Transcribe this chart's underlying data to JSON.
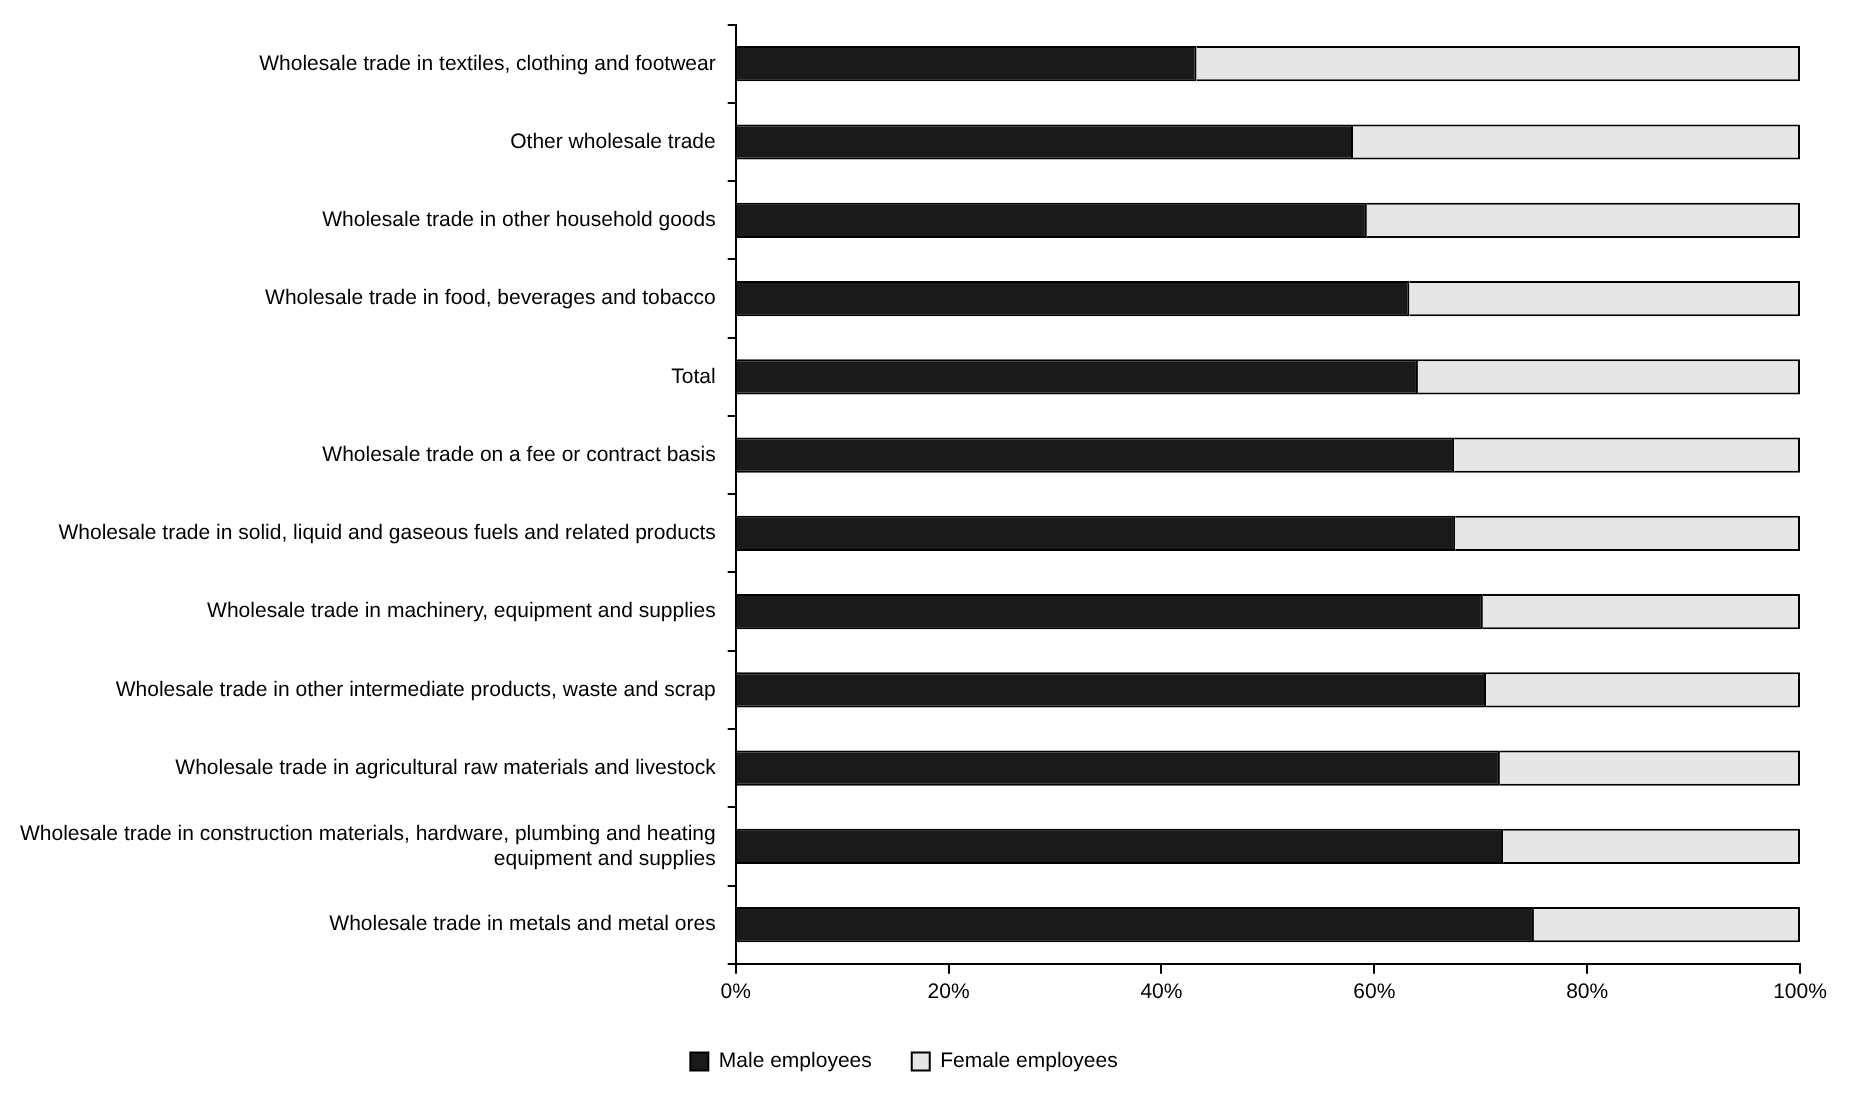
{
  "chart_data": {
    "type": "bar",
    "orientation": "horizontal",
    "stacked": true,
    "legend": "bottom",
    "grid": false,
    "categories": [
      "Wholesale trade in textiles, clothing and footwear",
      "Other wholesale trade",
      "Wholesale trade in other household goods",
      "Wholesale trade in food, beverages and tobacco",
      "Total",
      "Wholesale trade on a fee or contract basis",
      "Wholesale trade in solid, liquid and gaseous fuels and related products",
      "Wholesale trade in machinery, equipment and supplies",
      "Wholesale trade in other intermediate products, waste and scrap",
      "Wholesale trade in agricultural raw materials and livestock",
      "Wholesale trade in construction materials, hardware, plumbing and heating equipment and supplies",
      "Wholesale trade in metals and metal ores"
    ],
    "xlim": [
      0,
      100
    ],
    "xticks": [
      {
        "value": 0,
        "label": "0%"
      },
      {
        "value": 20,
        "label": "20%"
      },
      {
        "value": 40,
        "label": "40%"
      },
      {
        "value": 60,
        "label": "60%"
      },
      {
        "value": 80,
        "label": "80%"
      },
      {
        "value": 100,
        "label": "100%"
      }
    ],
    "series": [
      {
        "name": "Male employees",
        "color": "#1a1a1a",
        "values": [
          43.3,
          58.0,
          59.3,
          63.3,
          64.1,
          67.5,
          67.6,
          70.2,
          70.5,
          71.8,
          72.1,
          75.0
        ]
      },
      {
        "name": "Female employees",
        "color": "#e6e6e6",
        "values": [
          56.7,
          42.0,
          40.7,
          36.7,
          35.9,
          32.5,
          32.4,
          29.8,
          29.5,
          28.2,
          27.9,
          25.0
        ]
      }
    ]
  }
}
